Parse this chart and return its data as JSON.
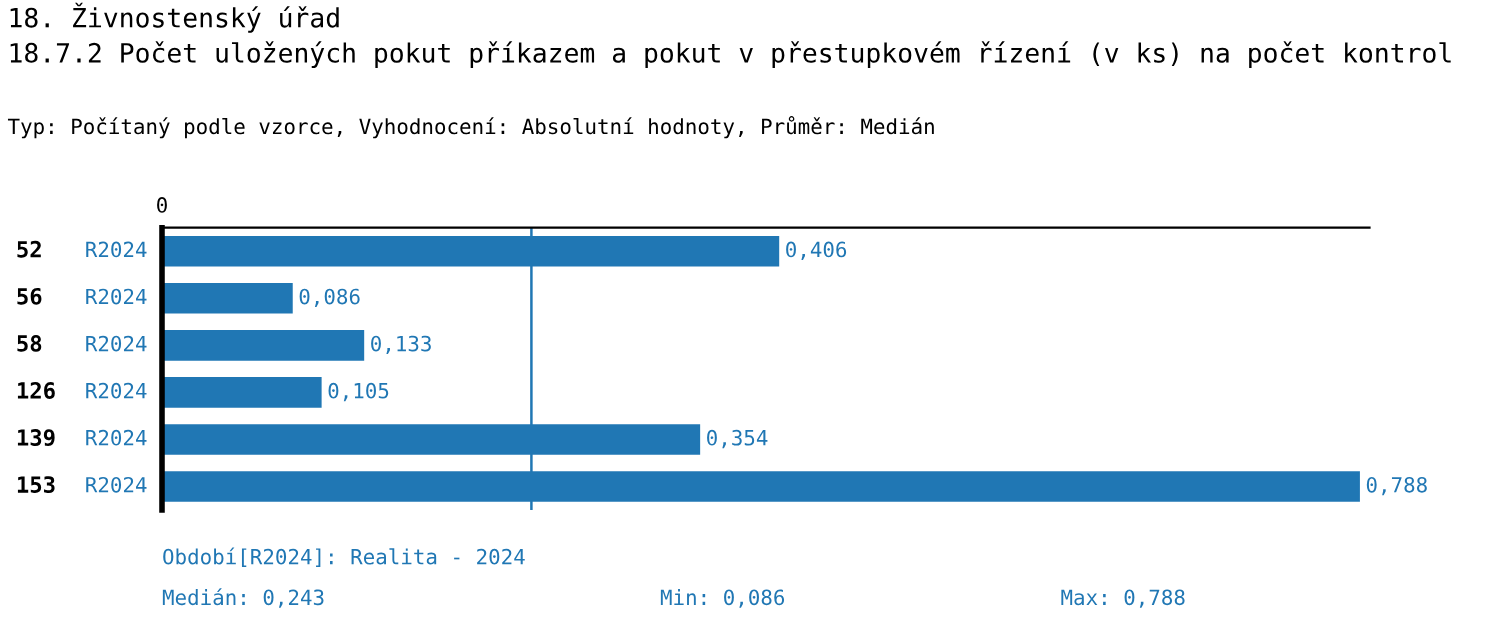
{
  "chart_data": {
    "type": "bar",
    "orientation": "horizontal",
    "title": "18. Živnostenský úřad",
    "subtitle": "18.7.2 Počet uložených pokut příkazem a pokut v přestupkovém řízení (v ks) na počet kontrol",
    "annotations": [
      "Typ: Počítaný podle vzorce, Vyhodnocení: Absolutní hodnoty, Průměr: Medián",
      "0",
      "Období[R2024]: Realita - 2024",
      "Medián: 0,243",
      "Min: 0,086",
      "Max: 0,788"
    ],
    "categories": [
      "52",
      "56",
      "58",
      "126",
      "139",
      "153"
    ],
    "series": [
      {
        "name": "R2024",
        "color": "#2077b4",
        "values": [
          0.406,
          0.086,
          0.133,
          0.105,
          0.354,
          0.788
        ],
        "value_labels": [
          "0,406",
          "0,086",
          "0,133",
          "0,105",
          "0,354",
          "0,788"
        ]
      }
    ],
    "ref_lines": [
      {
        "axis": "x",
        "value": 0.243,
        "color": "#2077b4"
      }
    ]
  }
}
